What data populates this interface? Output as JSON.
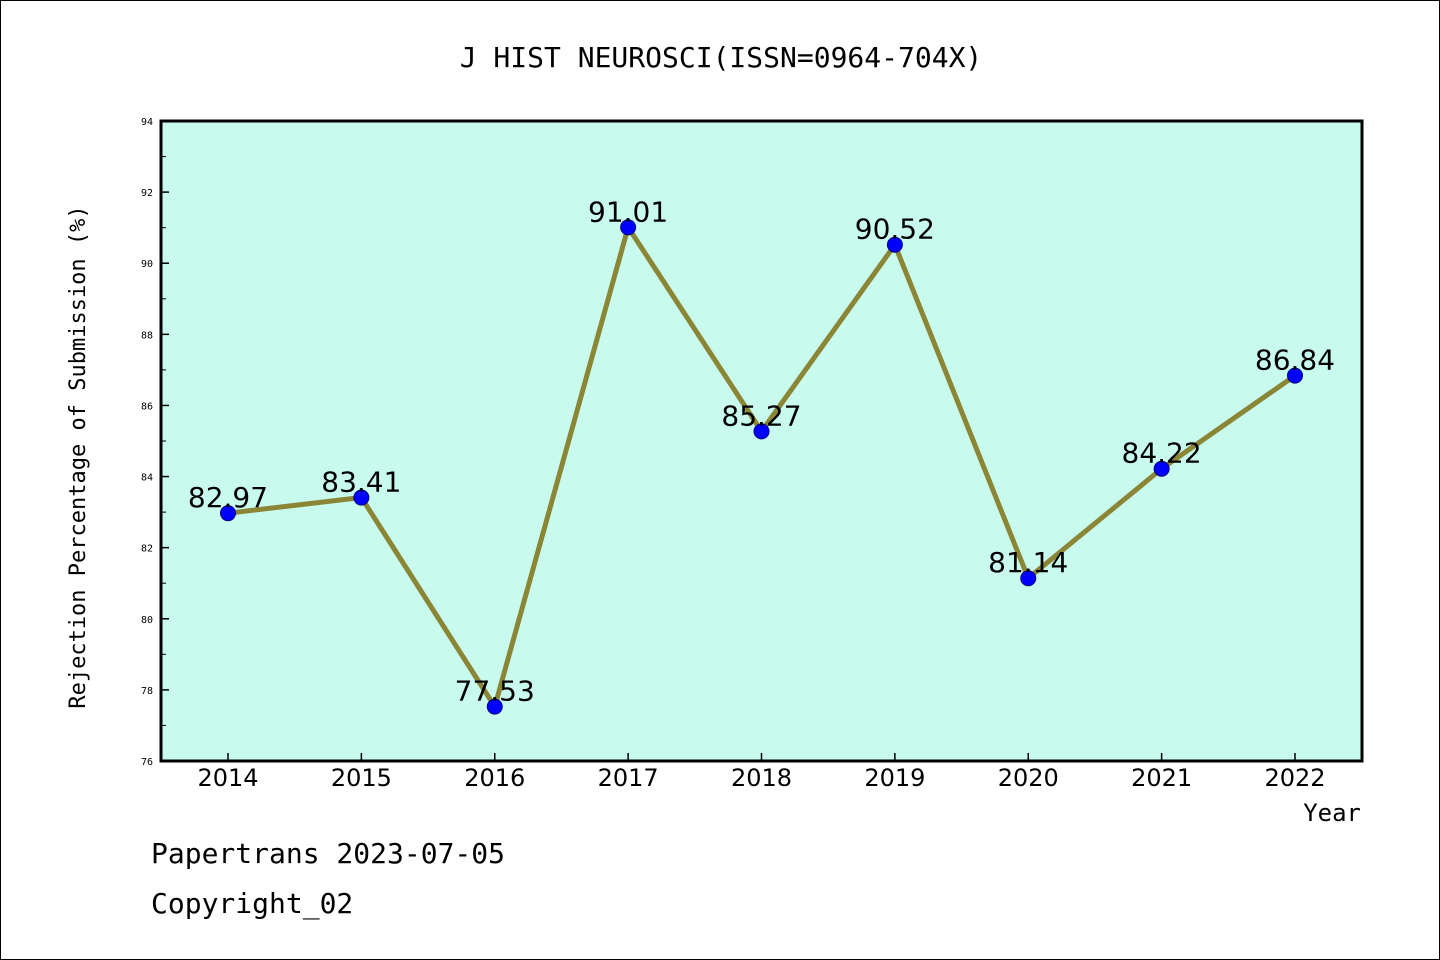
{
  "chart_data": {
    "type": "line",
    "title": "J HIST NEUROSCI(ISSN=0964-704X)",
    "xlabel": "Year",
    "ylabel": "Rejection Percentage of Submission (%)",
    "categories": [
      "2014",
      "2015",
      "2016",
      "2017",
      "2018",
      "2019",
      "2020",
      "2021",
      "2022"
    ],
    "values": [
      82.97,
      83.41,
      77.53,
      91.01,
      85.27,
      90.52,
      81.14,
      84.22,
      86.84
    ],
    "data_labels": [
      "82.97",
      "83.41",
      "77.53",
      "91.01",
      "85.27",
      "90.52",
      "81.14",
      "84.22",
      "86.84"
    ],
    "ylim": [
      76,
      94
    ],
    "yticks": [
      76,
      78,
      80,
      82,
      84,
      86,
      88,
      90,
      92,
      94
    ],
    "grid": false,
    "colors": {
      "plot_background": "#c8fbee",
      "line": "#8b8635",
      "marker": "#0000ff",
      "marker_edge": "#000080"
    }
  },
  "footer": {
    "line1": "Papertrans 2023-07-05",
    "line2": "Copyright_02"
  }
}
